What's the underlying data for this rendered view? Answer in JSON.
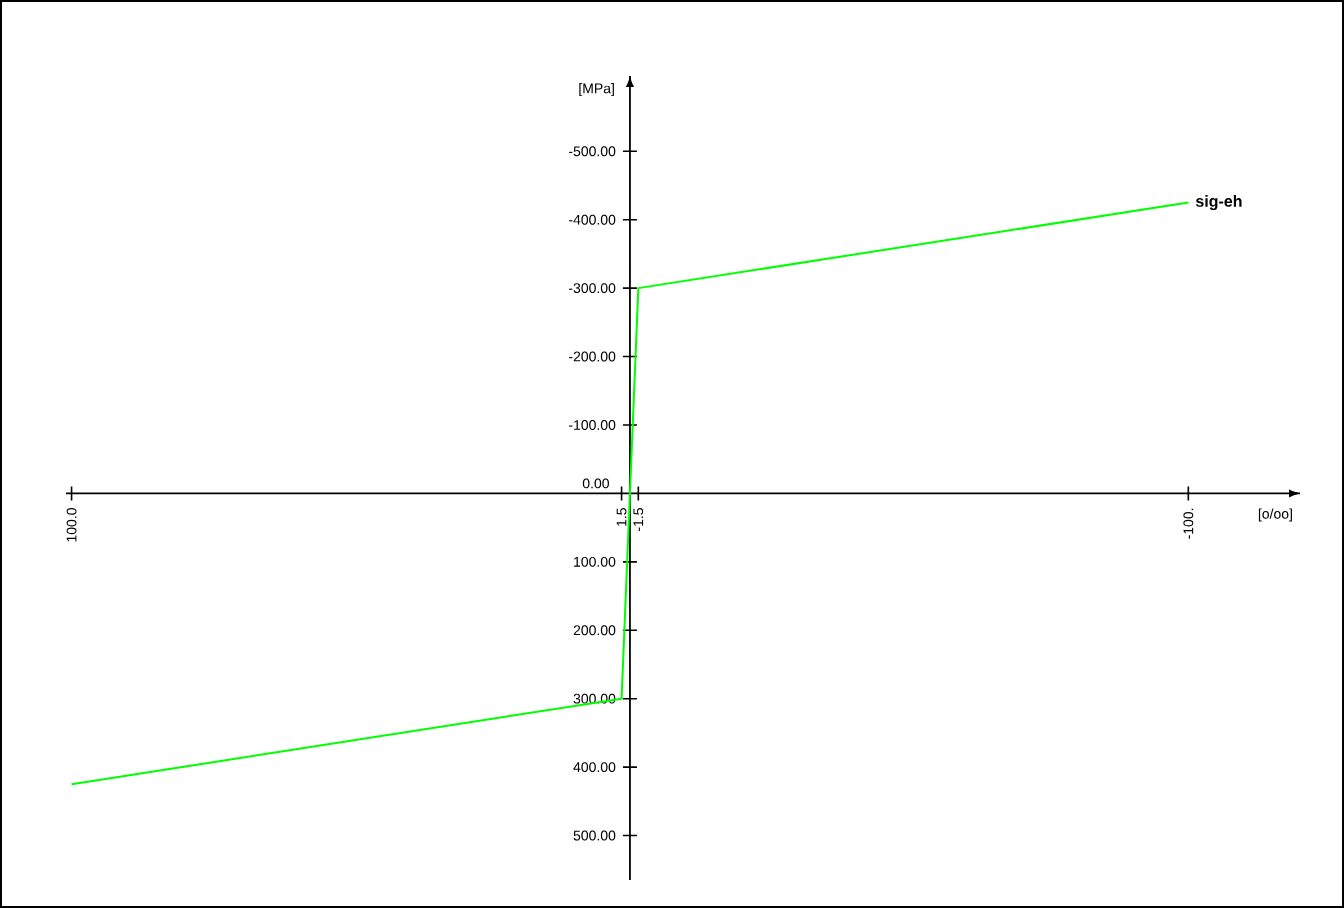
{
  "chart_data": {
    "type": "line",
    "xlabel": "[o/oo]",
    "ylabel": "[MPa]",
    "x": [
      100,
      1.5,
      0,
      -1.5,
      -100
    ],
    "series": [
      {
        "name": "sig-eh",
        "color": "#00ff00",
        "values": [
          425,
          300,
          0,
          -300,
          -425
        ]
      }
    ],
    "xlim": [
      101,
      -120
    ],
    "ylim": [
      565,
      -610
    ],
    "xticks": [
      {
        "value": 100,
        "label": "100.0"
      },
      {
        "value": 1.5,
        "label": "1.5"
      },
      {
        "value": -1.5,
        "label": "-1.5"
      },
      {
        "value": -100,
        "label": "-100."
      }
    ],
    "yticks": [
      {
        "value": -500,
        "label": "-500.00"
      },
      {
        "value": -400,
        "label": "-400.00"
      },
      {
        "value": -300,
        "label": "-300.00"
      },
      {
        "value": -200,
        "label": "-200.00"
      },
      {
        "value": -100,
        "label": "-100.00"
      },
      {
        "value": 0,
        "label": "0.00"
      },
      {
        "value": 100,
        "label": "100.00"
      },
      {
        "value": 200,
        "label": "200.00"
      },
      {
        "value": 300,
        "label": "300.00"
      },
      {
        "value": 400,
        "label": "400.00"
      },
      {
        "value": 500,
        "label": "500.00"
      }
    ],
    "grid": false,
    "legend": false,
    "marker": "none",
    "line_style": "solid"
  }
}
